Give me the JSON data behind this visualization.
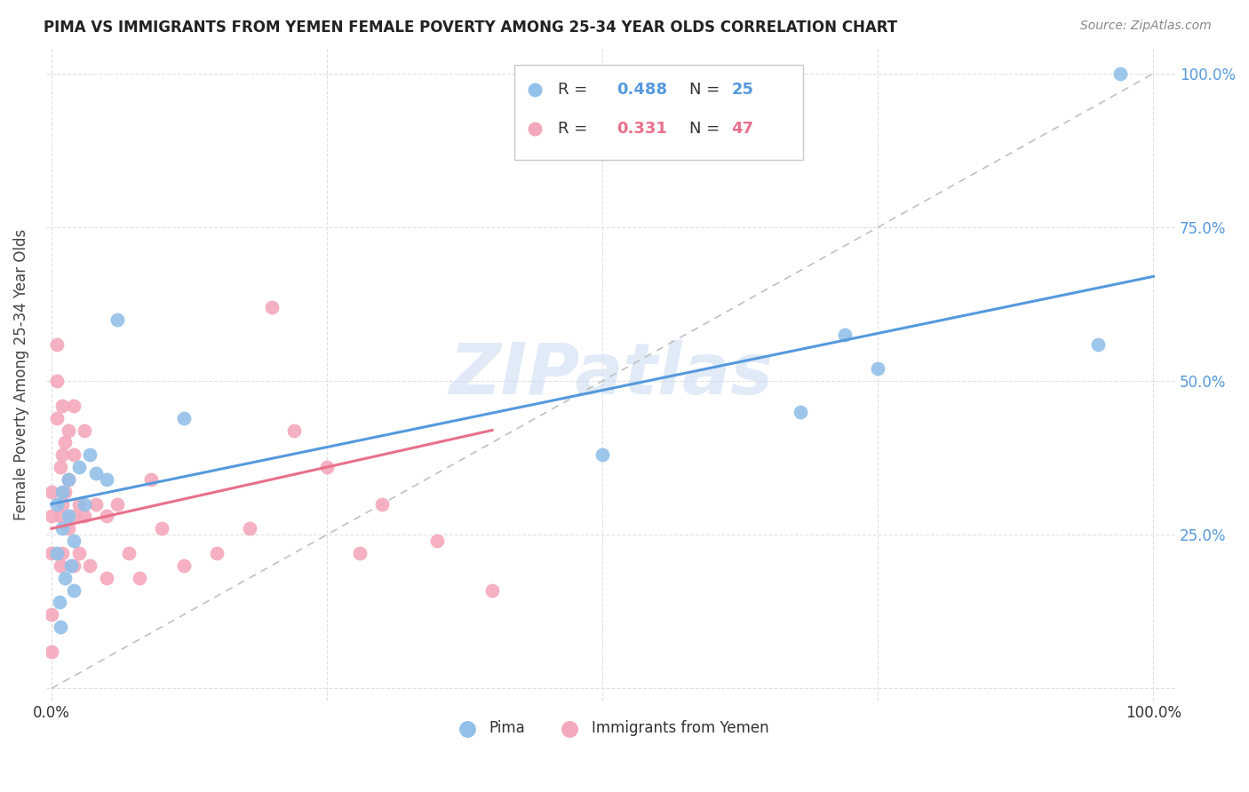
{
  "title": "PIMA VS IMMIGRANTS FROM YEMEN FEMALE POVERTY AMONG 25-34 YEAR OLDS CORRELATION CHART",
  "source": "Source: ZipAtlas.com",
  "ylabel": "Female Poverty Among 25-34 Year Olds",
  "xlim": [
    0,
    1
  ],
  "ylim": [
    0,
    1
  ],
  "xtick_vals": [
    0,
    0.25,
    0.5,
    0.75,
    1.0
  ],
  "ytick_vals": [
    0,
    0.25,
    0.5,
    0.75,
    1.0
  ],
  "xticklabels": [
    "0.0%",
    "",
    "",
    "",
    "100.0%"
  ],
  "yticklabels_right": [
    "",
    "25.0%",
    "50.0%",
    "75.0%",
    "100.0%"
  ],
  "color_blue": "#92c0e8",
  "color_pink": "#f4a8bc",
  "color_blue_line": "#5599dd",
  "color_pink_line": "#e8708a",
  "watermark": "ZIPatlas",
  "blue_x": [
    0.005,
    0.005,
    0.007,
    0.008,
    0.01,
    0.01,
    0.012,
    0.015,
    0.015,
    0.018,
    0.02,
    0.02,
    0.025,
    0.03,
    0.035,
    0.04,
    0.05,
    0.06,
    0.12,
    0.5,
    0.68,
    0.72,
    0.75,
    0.95,
    0.97
  ],
  "blue_y": [
    0.3,
    0.22,
    0.14,
    0.1,
    0.32,
    0.26,
    0.18,
    0.34,
    0.28,
    0.2,
    0.24,
    0.16,
    0.36,
    0.3,
    0.38,
    0.35,
    0.34,
    0.6,
    0.44,
    0.38,
    0.45,
    0.575,
    0.52,
    0.56,
    1.0
  ],
  "pink_x": [
    0.0,
    0.0,
    0.0,
    0.0,
    0.0,
    0.005,
    0.005,
    0.005,
    0.008,
    0.008,
    0.008,
    0.01,
    0.01,
    0.01,
    0.01,
    0.012,
    0.012,
    0.015,
    0.015,
    0.015,
    0.02,
    0.02,
    0.02,
    0.02,
    0.025,
    0.025,
    0.03,
    0.03,
    0.035,
    0.04,
    0.05,
    0.05,
    0.06,
    0.07,
    0.08,
    0.09,
    0.1,
    0.12,
    0.15,
    0.18,
    0.2,
    0.22,
    0.25,
    0.28,
    0.3,
    0.35,
    0.4
  ],
  "pink_y": [
    0.32,
    0.28,
    0.22,
    0.12,
    0.06,
    0.56,
    0.5,
    0.44,
    0.36,
    0.28,
    0.2,
    0.46,
    0.38,
    0.3,
    0.22,
    0.4,
    0.32,
    0.42,
    0.34,
    0.26,
    0.46,
    0.38,
    0.28,
    0.2,
    0.3,
    0.22,
    0.42,
    0.28,
    0.2,
    0.3,
    0.28,
    0.18,
    0.3,
    0.22,
    0.18,
    0.34,
    0.26,
    0.2,
    0.22,
    0.26,
    0.62,
    0.42,
    0.36,
    0.22,
    0.3,
    0.24,
    0.16
  ],
  "blue_line_x": [
    0.0,
    1.0
  ],
  "blue_line_y_start": 0.3,
  "blue_line_y_end": 0.67,
  "pink_line_x": [
    0.0,
    0.4
  ],
  "pink_line_y_start": 0.26,
  "pink_line_y_end": 0.42
}
